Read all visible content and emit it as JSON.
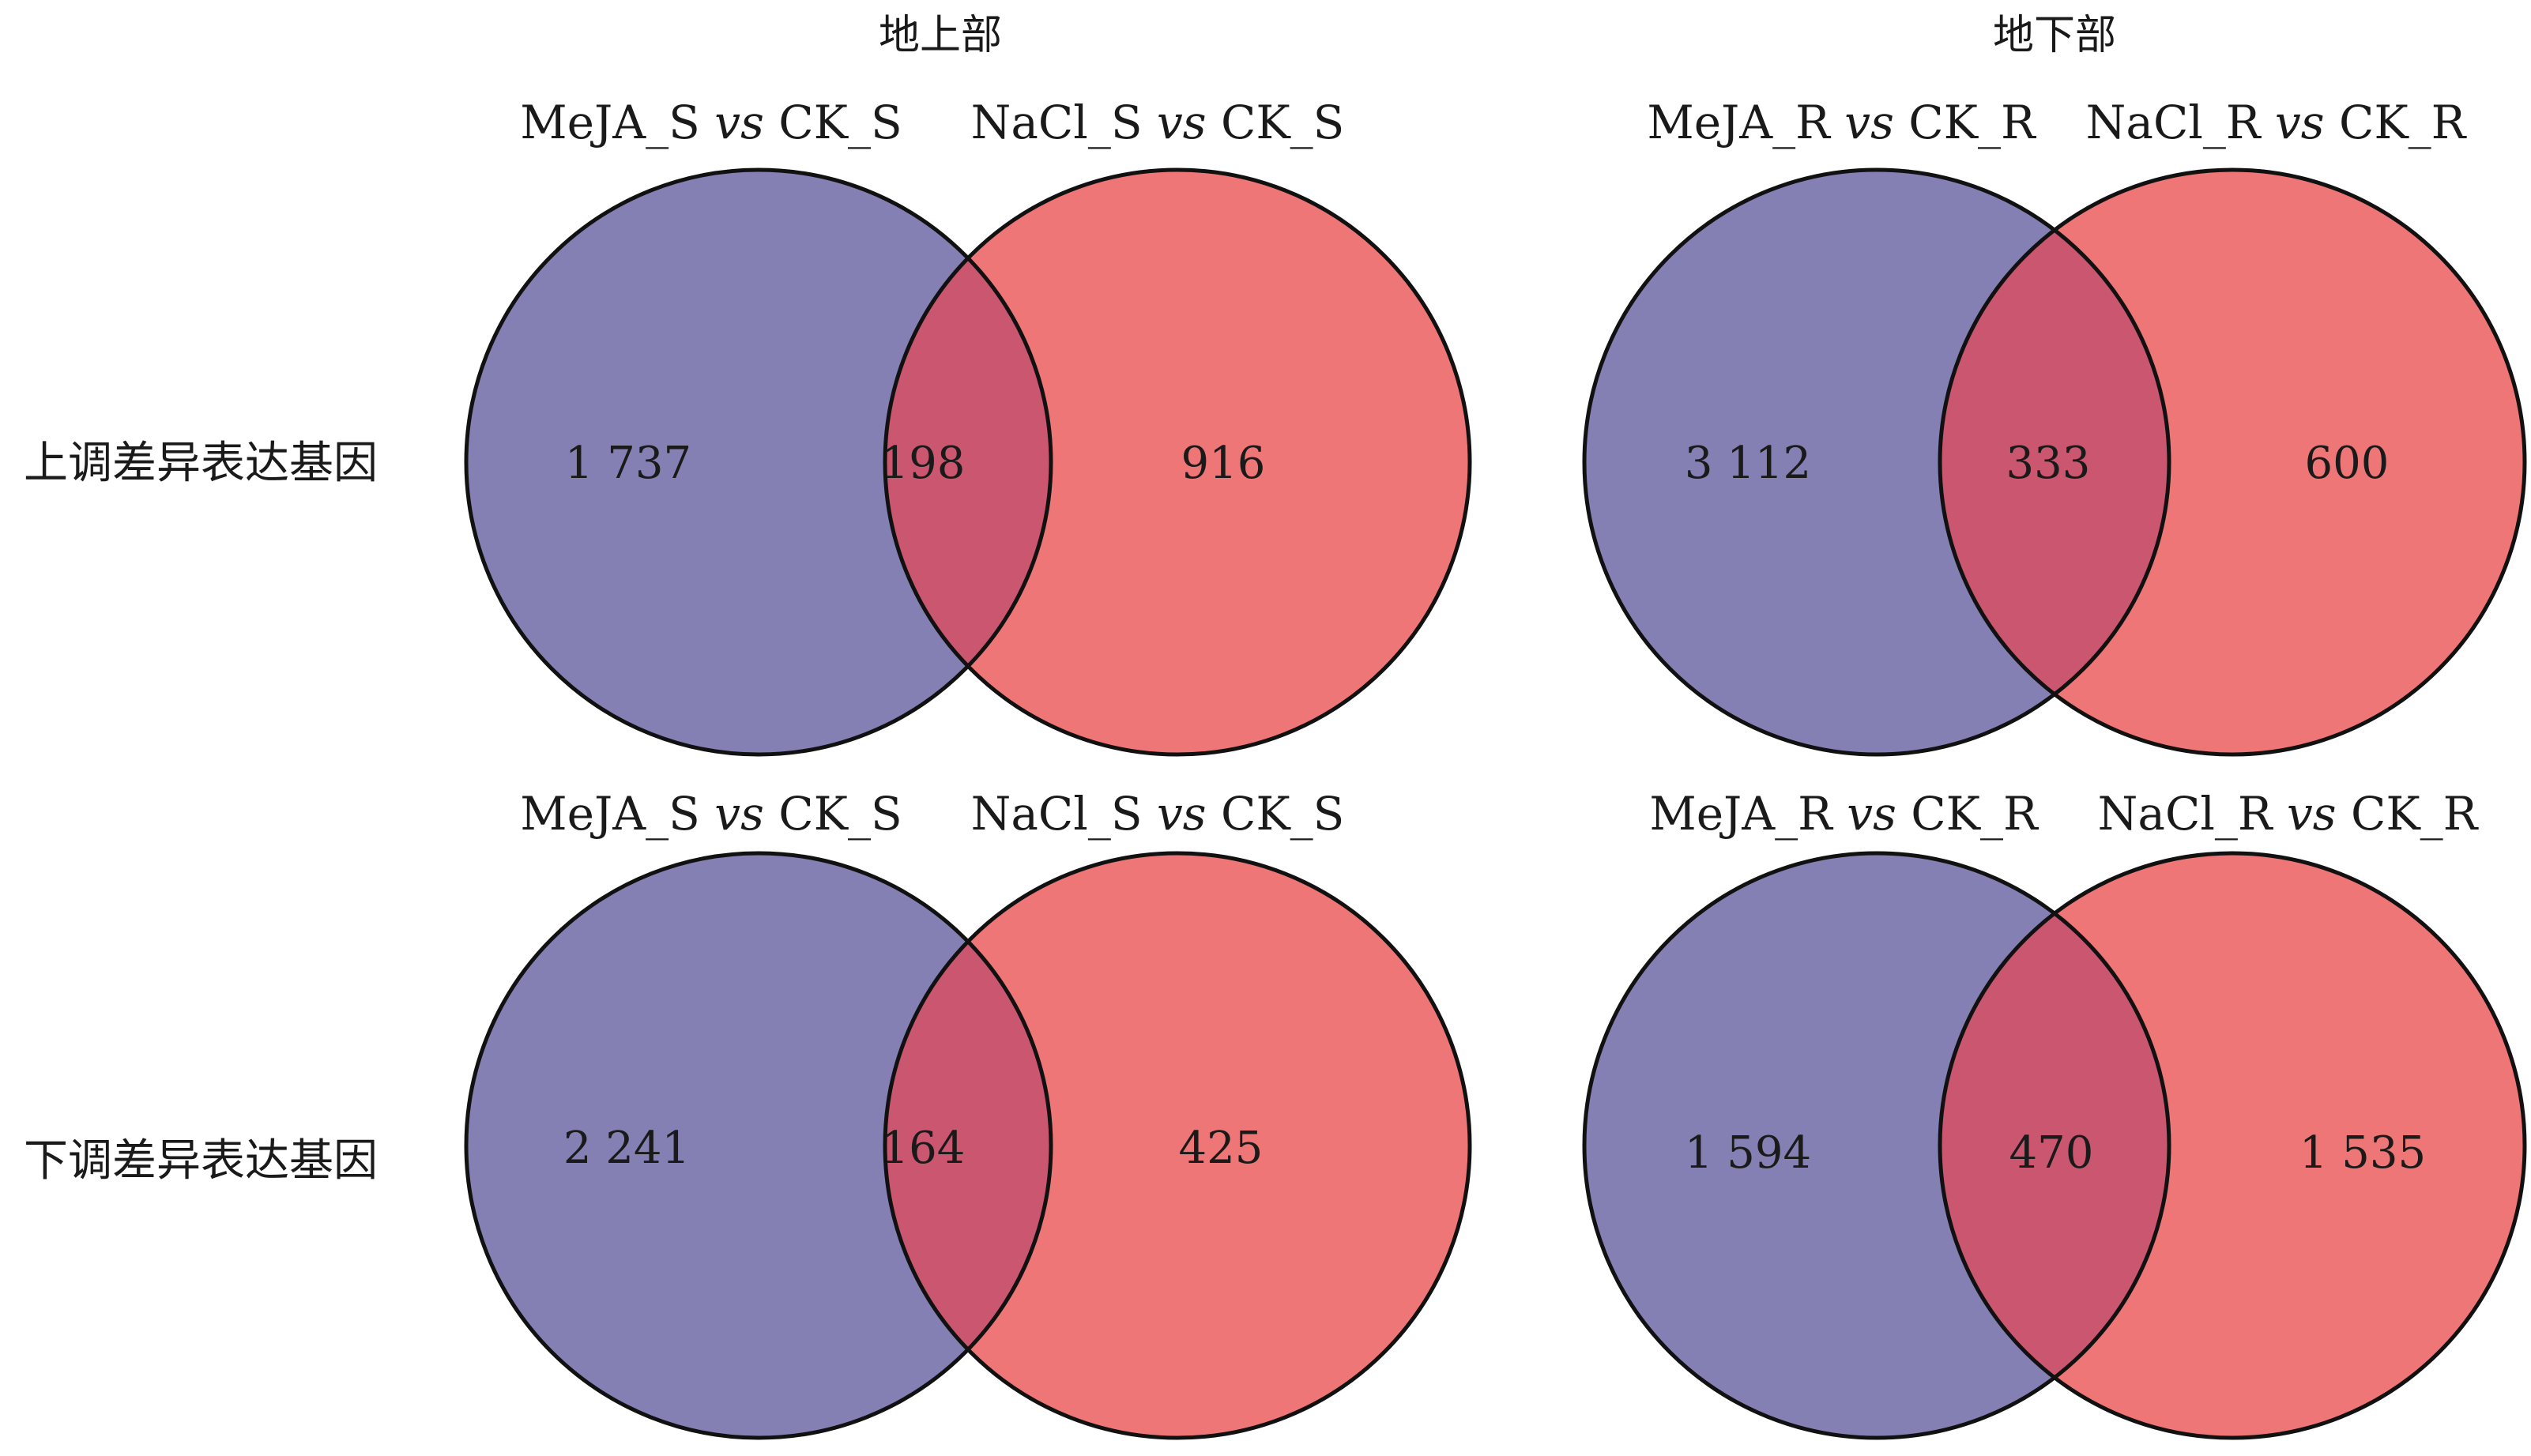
{
  "columns": {
    "shoot": "地上部",
    "root": "地下部"
  },
  "rows": {
    "up": "上调差异表达基因",
    "down": "下调差异表达基因"
  },
  "vs_word": "vs",
  "colors": {
    "left_circle": "#8580b3",
    "right_circle": "#ef7676",
    "overlap": "#cb5670",
    "stroke": "#111111"
  },
  "venns": {
    "shoot_up": {
      "left_a": "MeJA_S",
      "left_b": "CK_S",
      "right_a": "NaCl_S",
      "right_b": "CK_S",
      "left_only": "1 737",
      "overlap": "198",
      "right_only": "916"
    },
    "root_up": {
      "left_a": "MeJA_R",
      "left_b": "CK_R",
      "right_a": "NaCl_R",
      "right_b": "CK_R",
      "left_only": "3 112",
      "overlap": "333",
      "right_only": "600"
    },
    "shoot_down": {
      "left_a": "MeJA_S",
      "left_b": "CK_S",
      "right_a": "NaCl_S",
      "right_b": "CK_S",
      "left_only": "2 241",
      "overlap": "164",
      "right_only": "425"
    },
    "root_down": {
      "left_a": "MeJA_R",
      "left_b": "CK_R",
      "right_a": "NaCl_R",
      "right_b": "CK_R",
      "left_only": "1 594",
      "overlap": "470",
      "right_only": "1 535"
    }
  }
}
